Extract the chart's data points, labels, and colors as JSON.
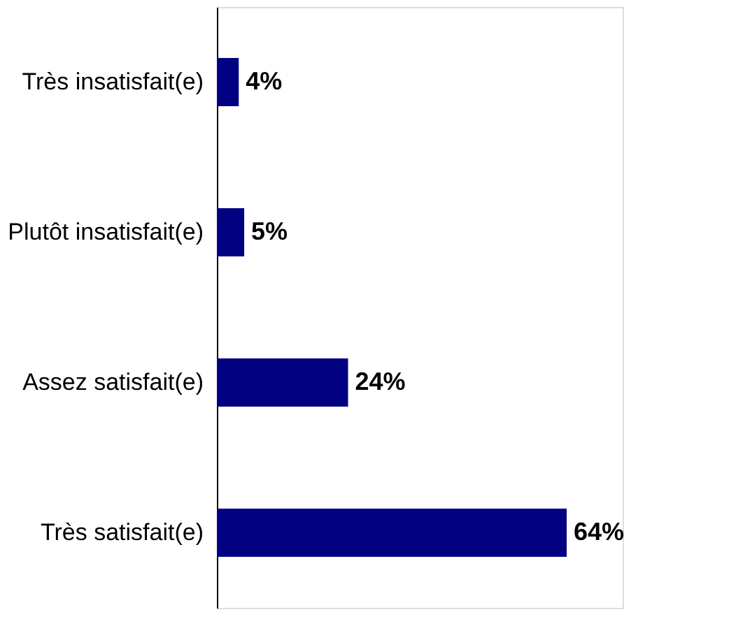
{
  "chart_data": {
    "type": "bar",
    "orientation": "horizontal",
    "categories": [
      "Très insatisfait(e)",
      "Plutôt insatisfait(e)",
      "Assez satisfait(e)",
      "Très satisfait(e)"
    ],
    "values": [
      4,
      5,
      24,
      64
    ],
    "value_labels": [
      "4%",
      "5%",
      "24%",
      "64%"
    ],
    "color": "#000080"
  }
}
